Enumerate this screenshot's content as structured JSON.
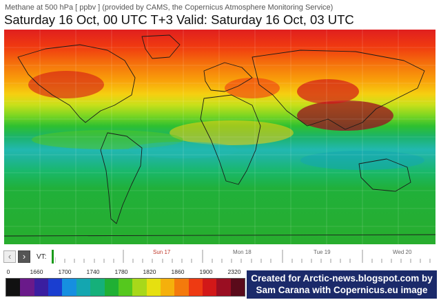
{
  "subtitle": "Methane at 500 hPa [ ppbv ] (provided by CAMS, the Copernicus Atmosphere Monitoring Service)",
  "title": "Saturday 16 Oct, 00 UTC T+3 Valid: Saturday 16 Oct, 03 UTC",
  "timeline": {
    "prev_icon": "‹",
    "next_icon": "›",
    "vt_label": "VT:",
    "days": [
      "Sun 17",
      "Mon 18",
      "Tue 19",
      "Wed 20"
    ]
  },
  "legend": {
    "labels": [
      "0",
      "1660",
      "1700",
      "1740",
      "1780",
      "1820",
      "1860",
      "1900",
      "2320"
    ],
    "colors": [
      "#111111",
      "#6a1a8a",
      "#3a1ea0",
      "#1a3ed0",
      "#168fe0",
      "#14a6b0",
      "#15b07a",
      "#20b034",
      "#55c81e",
      "#a8d81a",
      "#e6e010",
      "#f5b00c",
      "#f47a0c",
      "#ee3a12",
      "#d21818",
      "#9a0e22",
      "#5a0a1a"
    ]
  },
  "credit": {
    "line1": "Created for Arctic-news.blogspot.com by",
    "line2": "Sam Carana with Copernicus.eu image"
  }
}
